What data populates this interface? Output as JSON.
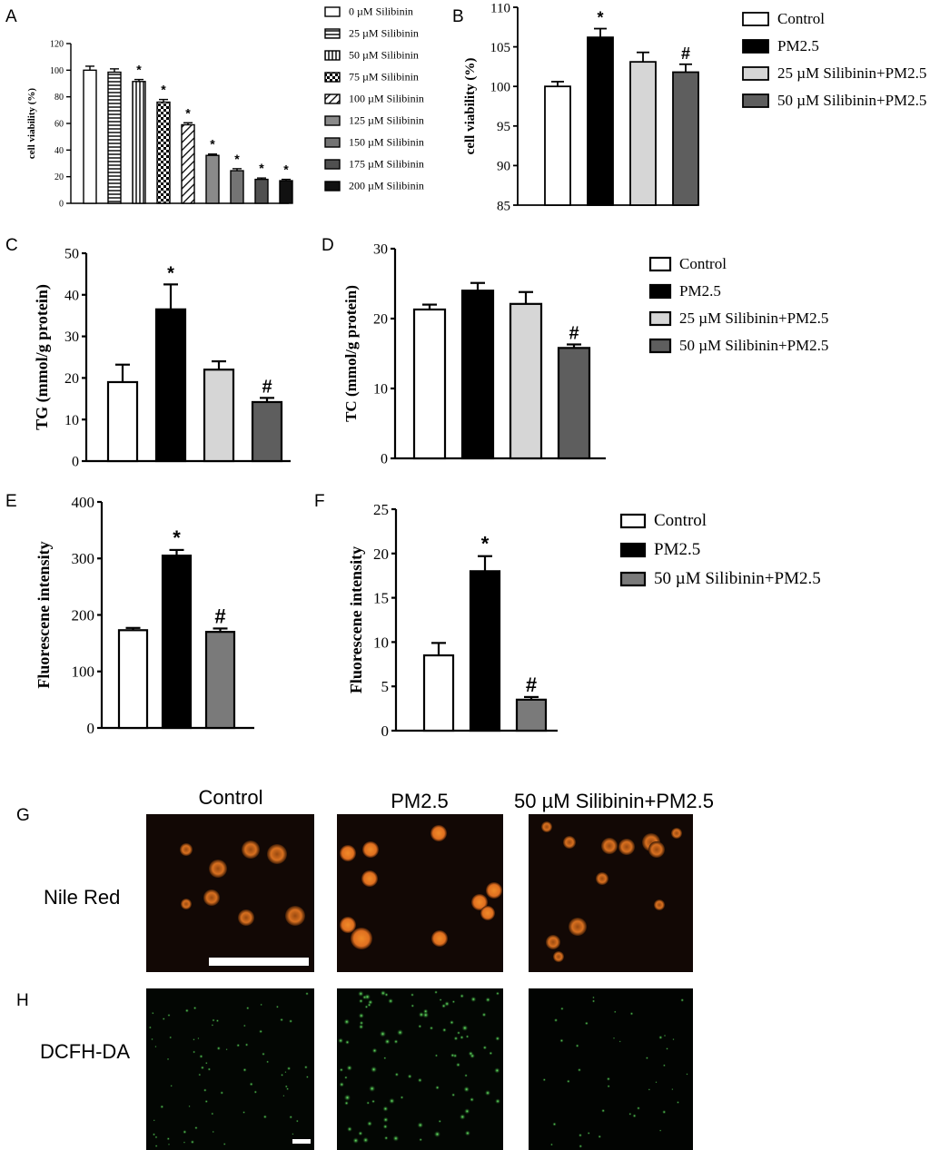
{
  "panel_labels": [
    "A",
    "B",
    "C",
    "D",
    "E",
    "F",
    "G",
    "H"
  ],
  "colors": {
    "white": "#ffffff",
    "black": "#000000",
    "light_gray": "#d6d6d6",
    "dark_gray": "#5e5e5e",
    "mid_gray": "#7a7a7a",
    "micrograph_bg": "#0b0503",
    "nile_red": "#e8801e",
    "dcfh_green": "#38e040"
  },
  "chart_data": [
    {
      "panel": "A",
      "type": "bar",
      "ylabel": "cell viability (%)",
      "ylim": [
        0,
        120
      ],
      "yticks": [
        0,
        20,
        40,
        60,
        80,
        100,
        120
      ],
      "categories": [
        "0 µM Silibinin",
        "25 µM Silibinin",
        "50 µM Silibinin",
        "75 µM Silibinin",
        "100 µM Silibinin",
        "125 µM Silibinin",
        "150 µM Silibinin",
        "175 µM Silibinin",
        "200 µM Silibinin"
      ],
      "values": [
        100,
        98.5,
        91.5,
        76,
        59,
        36,
        24.5,
        18,
        17
      ],
      "errors": [
        3,
        2.5,
        1.5,
        2,
        1.5,
        1,
        1.5,
        1,
        1
      ],
      "annotations": [
        "",
        "",
        "*",
        "*",
        "*",
        "*",
        "*",
        "*",
        "*"
      ],
      "fills": [
        "white",
        "hlines",
        "vlines",
        "checker",
        "diag",
        "#8a8a8a",
        "#747474",
        "#505050",
        "#111111"
      ],
      "legend": [
        "0 µM Silibinin",
        "25 µM Silibinin",
        "50 µM Silibinin",
        "75 µM Silibinin",
        "100 µM Silibinin",
        "125 µM Silibinin",
        "150 µM Silibinin",
        "175 µM Silibinin",
        "200 µM Silibinin"
      ],
      "legend_position": "right"
    },
    {
      "panel": "B",
      "type": "bar",
      "ylabel": "cell viability (%)",
      "ylim": [
        85,
        110
      ],
      "yticks": [
        85,
        90,
        95,
        100,
        105,
        110
      ],
      "categories": [
        "Control",
        "PM2.5",
        "25 µM Silibinin+PM2.5",
        "50 µM Silibinin+PM2.5"
      ],
      "values": [
        100,
        106.2,
        103.1,
        101.8
      ],
      "errors": [
        0.6,
        1.1,
        1.2,
        1.0
      ],
      "annotations": [
        "",
        "*",
        "",
        "#"
      ],
      "fills": [
        "#ffffff",
        "#000000",
        "#d6d6d6",
        "#5e5e5e"
      ],
      "legend": [
        "Control",
        "PM2.5",
        "25 µM Silibinin+PM2.5",
        "50 µM Silibinin+PM2.5"
      ],
      "legend_position": "right"
    },
    {
      "panel": "C",
      "type": "bar",
      "ylabel": "TG (mmol/g protein)",
      "ylim": [
        0,
        50
      ],
      "yticks": [
        0,
        10,
        20,
        30,
        40,
        50
      ],
      "categories": [
        "Control",
        "PM2.5",
        "25 µM Silibinin+PM2.5",
        "50 µM Silibinin+PM2.5"
      ],
      "values": [
        19,
        36.5,
        22,
        14.2
      ],
      "errors": [
        4.2,
        6,
        2,
        1
      ],
      "annotations": [
        "",
        "*",
        "",
        "#"
      ],
      "fills": [
        "#ffffff",
        "#000000",
        "#d6d6d6",
        "#5e5e5e"
      ]
    },
    {
      "panel": "D",
      "type": "bar",
      "ylabel": "TC (mmol/g protein)",
      "ylim": [
        0,
        30
      ],
      "yticks": [
        0,
        10,
        20,
        30
      ],
      "categories": [
        "Control",
        "PM2.5",
        "25 µM Silibinin+PM2.5",
        "50 µM Silibinin+PM2.5"
      ],
      "values": [
        21.3,
        24,
        22.1,
        15.8
      ],
      "errors": [
        0.7,
        1.1,
        1.7,
        0.5
      ],
      "annotations": [
        "",
        "",
        "",
        "#"
      ],
      "fills": [
        "#ffffff",
        "#000000",
        "#d6d6d6",
        "#5e5e5e"
      ],
      "legend": [
        "Control",
        "PM2.5",
        "25 µM Silibinin+PM2.5",
        "50 µM Silibinin+PM2.5"
      ],
      "legend_position": "right"
    },
    {
      "panel": "E",
      "type": "bar",
      "ylabel": "Fluorescene intensity",
      "ylim": [
        0,
        400
      ],
      "yticks": [
        0,
        100,
        200,
        300,
        400
      ],
      "categories": [
        "Control",
        "PM2.5",
        "50 µM Silibinin+PM2.5"
      ],
      "values": [
        173,
        305,
        170
      ],
      "errors": [
        4,
        10,
        6
      ],
      "annotations": [
        "",
        "*",
        "#"
      ],
      "fills": [
        "#ffffff",
        "#000000",
        "#7a7a7a"
      ]
    },
    {
      "panel": "F",
      "type": "bar",
      "ylabel": "Fluorescene intensity",
      "ylim": [
        0,
        25
      ],
      "yticks": [
        0,
        5,
        10,
        15,
        20,
        25
      ],
      "categories": [
        "Control",
        "PM2.5",
        "50 µM Silibinin+PM2.5"
      ],
      "values": [
        8.5,
        18,
        3.5
      ],
      "errors": [
        1.4,
        1.7,
        0.3
      ],
      "annotations": [
        "",
        "*",
        "#"
      ],
      "fills": [
        "#ffffff",
        "#000000",
        "#7a7a7a"
      ],
      "legend": [
        "Control",
        "PM2.5",
        "50 µM Silibinin+PM2.5"
      ],
      "legend_position": "right"
    }
  ],
  "micrographs": {
    "column_titles": [
      "Control",
      "PM2.5",
      "50 µM Silibinin+PM2.5"
    ],
    "row_titles": [
      "Nile Red",
      "DCFH-DA"
    ]
  }
}
